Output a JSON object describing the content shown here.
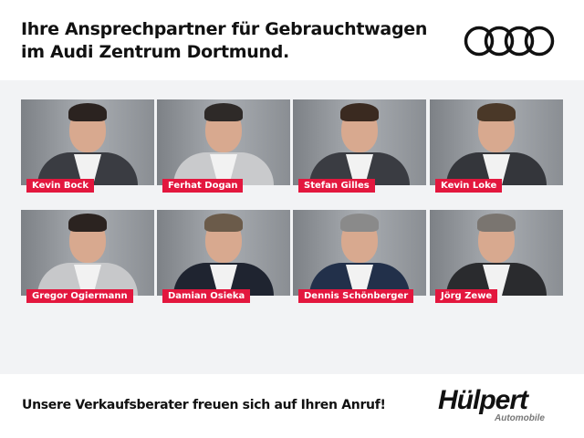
{
  "header": {
    "title_line1": "Ihre Ansprechpartner für Gebrauchtwagen",
    "title_line2": "im Audi Zentrum Dortmund.",
    "logo": "audi-rings-logo"
  },
  "people": [
    {
      "name": "Kevin Bock"
    },
    {
      "name": "Ferhat Dogan"
    },
    {
      "name": "Stefan Gilles"
    },
    {
      "name": "Kevin Loke"
    },
    {
      "name": "Gregor Ogiermann"
    },
    {
      "name": "Damian Osieka"
    },
    {
      "name": "Dennis Schönberger"
    },
    {
      "name": "Jörg Zewe"
    }
  ],
  "footer": {
    "slogan": "Unsere Verkaufsberater freuen sich auf Ihren Anruf!",
    "logo_name": "Hülpert",
    "logo_sub": "Automobile"
  },
  "colors": {
    "label_bg": "#e3173e",
    "panel_bg": "#f2f3f5"
  }
}
